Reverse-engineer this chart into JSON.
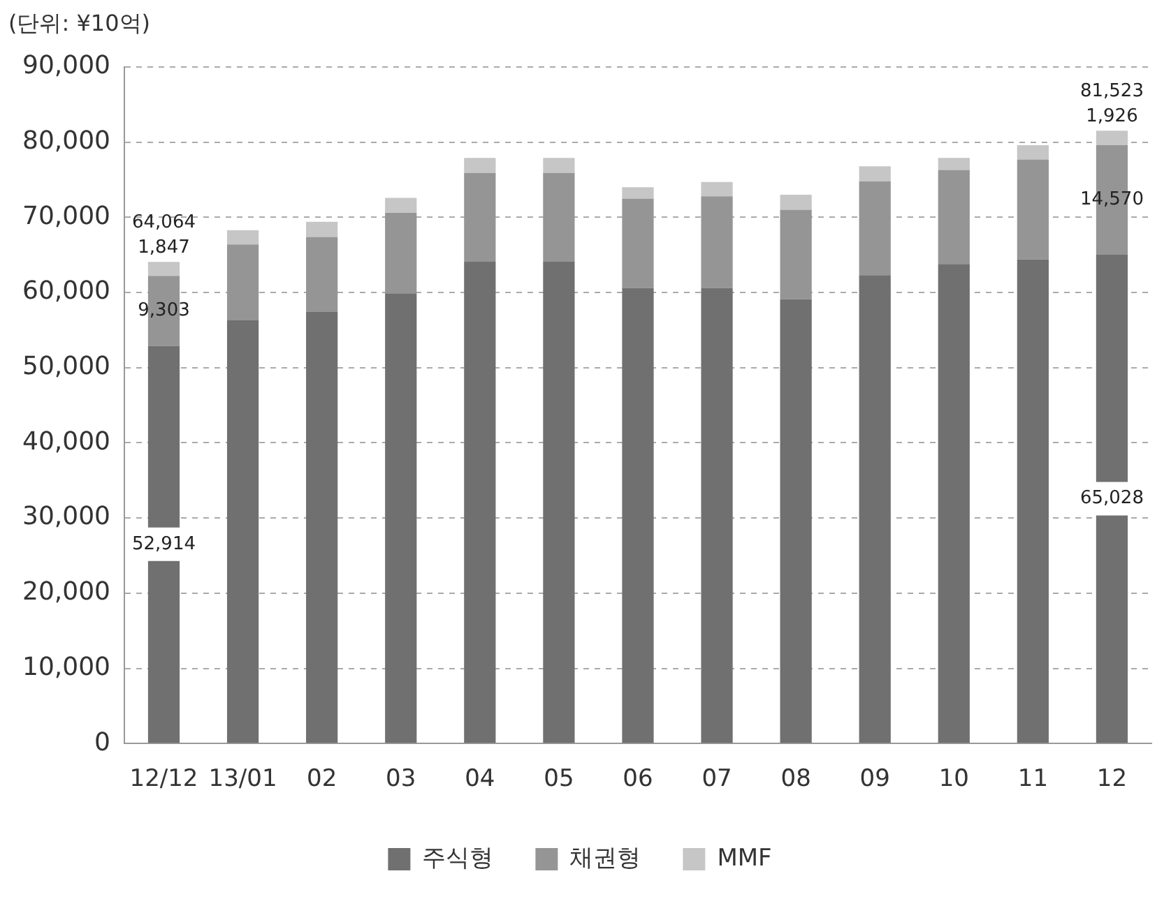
{
  "chart_data": {
    "type": "bar",
    "ylabel": "(단위: ¥10억)",
    "stacked": true,
    "categories": [
      "12/12",
      "13/01",
      "02",
      "03",
      "04",
      "05",
      "06",
      "07",
      "08",
      "09",
      "10",
      "11",
      "12"
    ],
    "series": [
      {
        "name": "주식형",
        "color": "#707070",
        "values": [
          52914,
          56300,
          57400,
          59900,
          64100,
          64100,
          60600,
          60600,
          59100,
          62300,
          63800,
          64400,
          65028
        ],
        "value_labels": [
          "52,914",
          null,
          null,
          null,
          null,
          null,
          null,
          null,
          null,
          null,
          null,
          null,
          "65,028"
        ]
      },
      {
        "name": "채권형",
        "color": "#959595",
        "values": [
          9303,
          10100,
          10000,
          10700,
          11800,
          11800,
          11900,
          12200,
          11900,
          12500,
          12500,
          13300,
          14570
        ],
        "value_labels": [
          "9,303",
          null,
          null,
          null,
          null,
          null,
          null,
          null,
          null,
          null,
          null,
          null,
          "14,570"
        ]
      },
      {
        "name": "MMF",
        "color": "#c6c6c6",
        "values": [
          1847,
          1900,
          2000,
          2000,
          2000,
          2000,
          1500,
          1900,
          2000,
          2000,
          1600,
          1900,
          1926
        ],
        "value_labels": [
          "1,847",
          null,
          null,
          null,
          null,
          null,
          null,
          null,
          null,
          null,
          null,
          null,
          "1,926"
        ]
      }
    ],
    "totals": [
      "64,064",
      null,
      null,
      null,
      null,
      null,
      null,
      null,
      null,
      null,
      null,
      null,
      "81,523"
    ],
    "ylim": [
      0,
      90000
    ],
    "yticks": [
      0,
      {
        "value": 10000,
        "label": "10,000"
      },
      {
        "value": 20000,
        "label": "20,000"
      },
      {
        "value": 30000,
        "label": "30,000"
      },
      {
        "value": 40000,
        "label": "40,000"
      },
      {
        "value": 50000,
        "label": "50,000"
      },
      {
        "value": 60000,
        "label": "60,000"
      },
      {
        "value": 70000,
        "label": "70,000"
      },
      {
        "value": 80000,
        "label": "80,000"
      },
      {
        "value": 90000,
        "label": "90,000"
      }
    ],
    "grid": "y",
    "legend": "bottom"
  }
}
